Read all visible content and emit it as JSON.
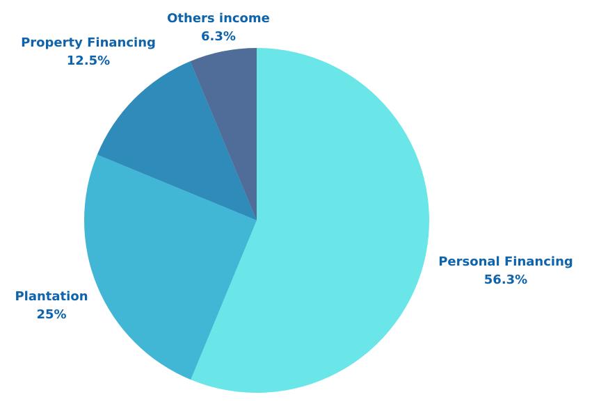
{
  "chart_data": {
    "type": "pie",
    "title": "",
    "start": "top",
    "direction": "clockwise",
    "slices": [
      {
        "label": "Personal Financing",
        "value": 56.3,
        "value_label": "56.3%",
        "color": "#6AE5E8"
      },
      {
        "label": "Plantation",
        "value": 25,
        "value_label": "25%",
        "color": "#42B7D5"
      },
      {
        "label": "Property Financing",
        "value": 12.5,
        "value_label": "12.5%",
        "color": "#2E8BBA"
      },
      {
        "label": "Others income",
        "value": 6.3,
        "value_label": "6.3%",
        "color": "#4F6D98"
      }
    ],
    "label_color": "#0E63AA"
  }
}
